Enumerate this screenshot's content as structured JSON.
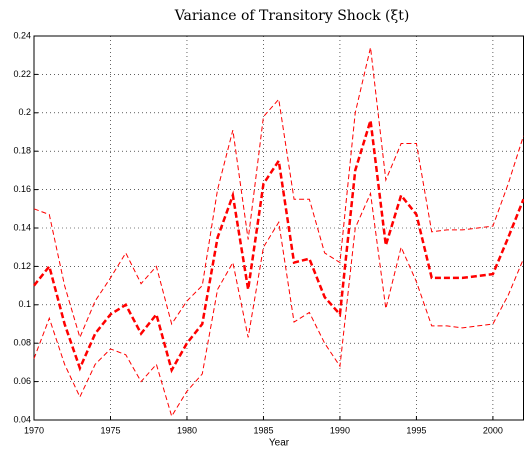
{
  "chart_data": {
    "type": "line",
    "title": "Variance of Transitory Shock (ξt)",
    "xlabel": "Year",
    "x": [
      1970,
      1971,
      1972,
      1973,
      1974,
      1975,
      1976,
      1977,
      1978,
      1979,
      1980,
      1981,
      1982,
      1983,
      1984,
      1985,
      1986,
      1987,
      1988,
      1989,
      1990,
      1991,
      1992,
      1993,
      1994,
      1995,
      1996,
      1997,
      1998,
      1999,
      2000,
      2001,
      2002
    ],
    "series": [
      {
        "color": "#ff0000",
        "values": [
          0.11,
          0.12,
          0.09,
          0.067,
          0.085,
          0.095,
          0.1,
          0.085,
          0.095,
          0.066,
          0.08,
          0.09,
          0.135,
          0.157,
          0.108,
          0.163,
          0.175,
          0.122,
          0.124,
          0.104,
          0.095,
          0.17,
          0.196,
          0.131,
          0.157,
          0.147,
          0.114,
          0.114,
          0.114,
          0.115,
          0.116,
          0.135,
          0.155
        ]
      },
      {
        "color": "#ff0000",
        "values": [
          0.15,
          0.147,
          0.11,
          0.083,
          0.102,
          0.114,
          0.127,
          0.111,
          0.12,
          0.09,
          0.102,
          0.11,
          0.16,
          0.191,
          0.134,
          0.198,
          0.207,
          0.155,
          0.155,
          0.127,
          0.122,
          0.2,
          0.234,
          0.165,
          0.184,
          0.184,
          0.138,
          0.139,
          0.139,
          0.14,
          0.141,
          0.163,
          0.188
        ]
      },
      {
        "color": "#ff0000",
        "values": [
          0.072,
          0.093,
          0.069,
          0.052,
          0.069,
          0.077,
          0.074,
          0.06,
          0.069,
          0.042,
          0.055,
          0.064,
          0.108,
          0.122,
          0.083,
          0.13,
          0.143,
          0.091,
          0.096,
          0.08,
          0.068,
          0.14,
          0.158,
          0.098,
          0.13,
          0.112,
          0.089,
          0.089,
          0.088,
          0.089,
          0.09,
          0.105,
          0.124
        ]
      }
    ],
    "xlim": [
      1970,
      2002
    ],
    "xticks": [
      1970,
      1975,
      1980,
      1985,
      1990,
      1995,
      2000
    ],
    "ylim": [
      0.04,
      0.24
    ],
    "yticks": [
      0.04,
      0.06,
      0.08,
      0.1,
      0.12,
      0.14,
      0.16,
      0.18,
      0.2,
      0.22,
      0.24
    ],
    "grid": true
  }
}
